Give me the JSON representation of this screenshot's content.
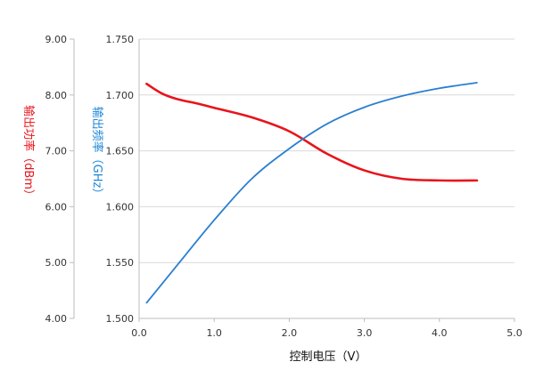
{
  "chart_data": {
    "type": "line",
    "xlabel": "控制电压（V）",
    "x_ticks": [
      "0.0",
      "1.0",
      "2.0",
      "3.0",
      "4.0",
      "5.0"
    ],
    "xlim": [
      0,
      5
    ],
    "y_axes": [
      {
        "id": "power",
        "label": "输出功率（dBm）",
        "label_color": "#e8141b",
        "ticks": [
          "9.00",
          "8.00",
          "7.00",
          "6.00",
          "5.00",
          "4.00"
        ],
        "ylim": [
          4,
          9
        ]
      },
      {
        "id": "freq",
        "label": "输出频率（GHz）",
        "label_color": "#1a86d6",
        "ticks": [
          "1.750",
          "1.700",
          "1.650",
          "1.600",
          "1.550",
          "1.500"
        ],
        "ylim": [
          1.5,
          1.75
        ]
      }
    ],
    "grid": {
      "horizontal": true,
      "vertical": false,
      "color": "#d9d9d9"
    },
    "series": [
      {
        "axis": "power",
        "color": "#e8141b",
        "x": [
          0.1,
          0.3,
          0.5,
          0.8,
          1.0,
          1.5,
          2.0,
          2.5,
          3.0,
          3.5,
          4.0,
          4.5
        ],
        "y": [
          8.2,
          8.03,
          7.93,
          7.84,
          7.77,
          7.6,
          7.35,
          6.95,
          6.65,
          6.5,
          6.47,
          6.47
        ]
      },
      {
        "axis": "freq",
        "color": "#2a7fd0",
        "x": [
          0.1,
          0.5,
          1.0,
          1.5,
          2.0,
          2.5,
          3.0,
          3.5,
          4.0,
          4.5
        ],
        "y": [
          1.514,
          1.547,
          1.588,
          1.625,
          1.652,
          1.674,
          1.689,
          1.699,
          1.706,
          1.711
        ]
      }
    ]
  }
}
